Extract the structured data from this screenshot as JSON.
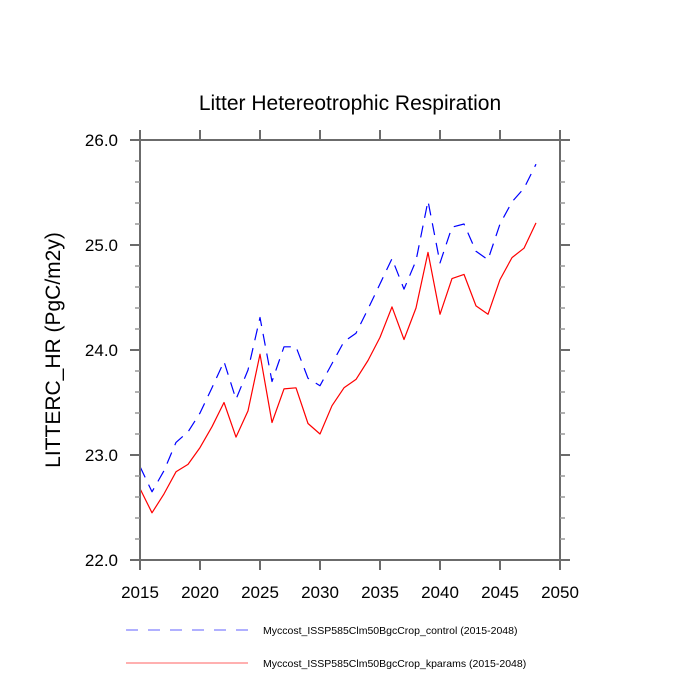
{
  "chart_data": {
    "type": "line",
    "title": "Litter Hetereotrophic Respiration",
    "xlabel": "",
    "ylabel": "LITTERC_HR  (PgC/m2y)",
    "xlim": [
      2015,
      2050
    ],
    "ylim": [
      22.0,
      26.0
    ],
    "xticks": [
      2015,
      2020,
      2025,
      2030,
      2035,
      2040,
      2045,
      2050
    ],
    "xtick_labels": [
      "2015",
      "2020",
      "2025",
      "2030",
      "2035",
      "2040",
      "2045",
      "2050"
    ],
    "yticks": [
      22.0,
      23.0,
      24.0,
      25.0,
      26.0
    ],
    "ytick_labels": [
      "22.0",
      "23.0",
      "24.0",
      "25.0",
      "26.0"
    ],
    "y_minor_step": 0.2,
    "grid": false,
    "legend_position": "bottom",
    "x": [
      2015,
      2016,
      2017,
      2018,
      2019,
      2020,
      2021,
      2022,
      2023,
      2024,
      2025,
      2026,
      2027,
      2028,
      2029,
      2030,
      2031,
      2032,
      2033,
      2034,
      2035,
      2036,
      2037,
      2038,
      2039,
      2040,
      2041,
      2042,
      2043,
      2044,
      2045,
      2046,
      2047,
      2048
    ],
    "series": [
      {
        "name": "Myccost_ISSP585Clm50BgcCrop_control (2015-2048)",
        "color": "#0000ff",
        "legend_color": "#8080ff",
        "dash": "dashed",
        "values": [
          22.89,
          22.65,
          22.85,
          23.12,
          23.22,
          23.4,
          23.64,
          23.89,
          23.53,
          23.81,
          24.31,
          23.7,
          24.03,
          24.03,
          23.73,
          23.66,
          23.87,
          24.08,
          24.16,
          24.39,
          24.63,
          24.87,
          24.58,
          24.85,
          25.42,
          24.83,
          25.17,
          25.2,
          24.94,
          24.86,
          25.2,
          25.41,
          25.54,
          25.77
        ]
      },
      {
        "name": "Myccost_ISSP585Clm50BgcCrop_kparams (2015-2048)",
        "color": "#ff0000",
        "legend_color": "#ff8080",
        "dash": "solid",
        "values": [
          22.68,
          22.45,
          22.63,
          22.84,
          22.91,
          23.07,
          23.27,
          23.5,
          23.17,
          23.42,
          23.96,
          23.31,
          23.63,
          23.64,
          23.3,
          23.2,
          23.47,
          23.64,
          23.72,
          23.9,
          24.12,
          24.41,
          24.1,
          24.4,
          24.93,
          24.34,
          24.68,
          24.72,
          24.42,
          24.34,
          24.67,
          24.88,
          24.97,
          25.21
        ]
      }
    ]
  }
}
